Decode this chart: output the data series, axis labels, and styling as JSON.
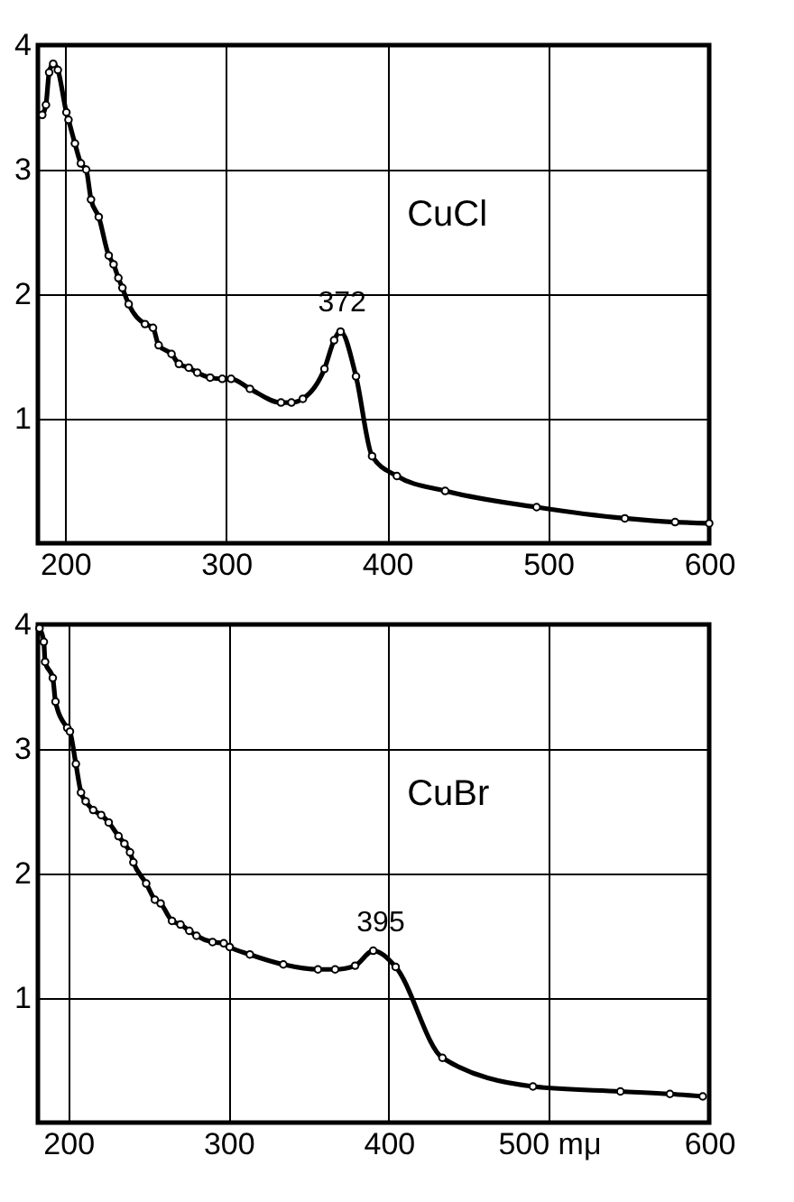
{
  "chart_data": [
    {
      "type": "line",
      "x": [
        185.7,
        188,
        190,
        192.5,
        195.4,
        200.7,
        202,
        206,
        209.7,
        213,
        216,
        220.8,
        227,
        230,
        233,
        235.5,
        239.4,
        249.5,
        254.5,
        258,
        266,
        270.6,
        276.7,
        282,
        290,
        297.5,
        303,
        314.7,
        334,
        340.5,
        347.6,
        361,
        367,
        371,
        380.6,
        390.6,
        406,
        436,
        492.8,
        547.6,
        578.8,
        600
      ],
      "series": [
        {
          "color": "#000000",
          "values": [
            3.44,
            3.52,
            3.78,
            3.85,
            3.8,
            3.46,
            3.4,
            3.21,
            3.05,
            3.0,
            2.76,
            2.62,
            2.31,
            2.24,
            2.13,
            2.05,
            1.92,
            1.76,
            1.73,
            1.59,
            1.52,
            1.44,
            1.41,
            1.37,
            1.33,
            1.32,
            1.32,
            1.24,
            1.13,
            1.13,
            1.16,
            1.4,
            1.63,
            1.7,
            1.34,
            0.7,
            0.54,
            0.42,
            0.29,
            0.2,
            0.17,
            0.16
          ]
        }
      ],
      "xlim": [
        183,
        600
      ],
      "xticks": [
        200,
        300,
        400,
        500,
        600
      ],
      "ylim": [
        0,
        4
      ],
      "yticks": [
        1,
        2,
        3,
        4
      ],
      "grid": true,
      "marker": "circle",
      "annotations": [
        "CuCl",
        {
          "text": "372",
          "x": 372,
          "y": 1.7
        }
      ]
    },
    {
      "type": "line",
      "x": [
        182,
        184.7,
        185.5,
        190.3,
        192,
        199.3,
        201,
        204.7,
        207.9,
        210.8,
        215.5,
        220.5,
        225.2,
        231.3,
        235,
        238.5,
        240.6,
        248.6,
        254,
        257.6,
        264.7,
        270,
        275.5,
        280,
        290,
        297,
        300.7,
        313.3,
        334.2,
        355.8,
        366.5,
        379,
        390.3,
        404.3,
        433.5,
        490,
        544.6,
        575.5,
        596
      ],
      "series": [
        {
          "color": "#000000",
          "values": [
            3.97,
            3.86,
            3.7,
            3.57,
            3.38,
            3.17,
            3.14,
            2.88,
            2.65,
            2.58,
            2.51,
            2.47,
            2.41,
            2.3,
            2.24,
            2.17,
            2.09,
            1.92,
            1.79,
            1.76,
            1.62,
            1.59,
            1.54,
            1.5,
            1.45,
            1.44,
            1.41,
            1.35,
            1.27,
            1.23,
            1.23,
            1.26,
            1.38,
            1.25,
            0.52,
            0.29,
            0.25,
            0.23,
            0.21
          ]
        }
      ],
      "xlim": [
        181,
        600
      ],
      "xticks": [
        200,
        300,
        400,
        {
          "value": 500,
          "label": "500 mμ"
        },
        600
      ],
      "ylim": [
        0,
        4
      ],
      "yticks": [
        1,
        2,
        3,
        4
      ],
      "grid": true,
      "marker": "circle",
      "annotations": [
        "CuBr",
        {
          "text": "395",
          "x": 395,
          "y": 1.38
        }
      ]
    }
  ]
}
